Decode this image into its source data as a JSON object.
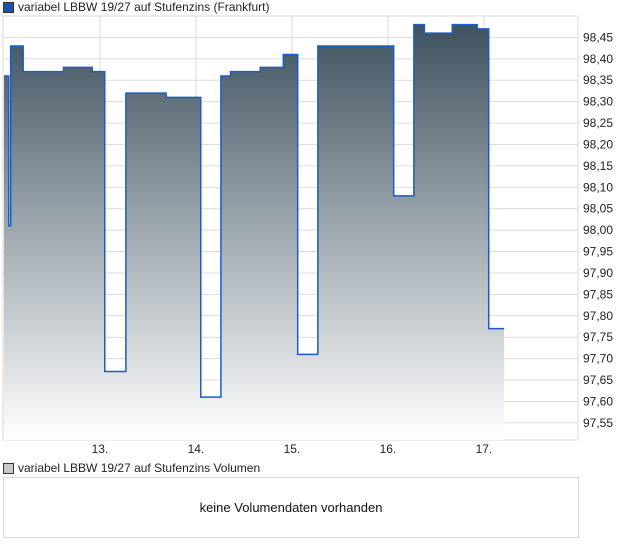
{
  "chart_data": {
    "type": "area",
    "title": "variabel LBBW 19/27 auf Stufenzins (Frankfurt)",
    "legend_color": "#1f4fb0",
    "line_color": "#1a5cc8",
    "fill_top": "#3f5260",
    "x_ticks": [
      {
        "day": 13,
        "label": "13."
      },
      {
        "day": 14,
        "label": "14."
      },
      {
        "day": 15,
        "label": "15."
      },
      {
        "day": 16,
        "label": "16."
      },
      {
        "day": 17,
        "label": "17."
      }
    ],
    "xlim": [
      11.99,
      17.98
    ],
    "ylim": [
      97.51,
      98.5
    ],
    "y_ticks": [
      "97,55",
      "97,60",
      "97,65",
      "97,70",
      "97,75",
      "97,80",
      "97,85",
      "97,90",
      "97,95",
      "98,00",
      "98,05",
      "98,10",
      "98,15",
      "98,20",
      "98,25",
      "98,30",
      "98,35",
      "98,40",
      "98,45"
    ],
    "y_tick_values": [
      97.55,
      97.6,
      97.65,
      97.7,
      97.75,
      97.8,
      97.85,
      97.9,
      97.95,
      98.0,
      98.05,
      98.1,
      98.15,
      98.2,
      98.25,
      98.3,
      98.35,
      98.4,
      98.45
    ],
    "grid": true,
    "points": [
      [
        12.0,
        98.36
      ],
      [
        12.05,
        98.01
      ],
      [
        12.07,
        98.43
      ],
      [
        12.2,
        98.37
      ],
      [
        12.62,
        98.38
      ],
      [
        12.92,
        98.37
      ],
      [
        13.05,
        97.67
      ],
      [
        13.27,
        98.32
      ],
      [
        13.69,
        98.31
      ],
      [
        14.05,
        97.61
      ],
      [
        14.26,
        98.36
      ],
      [
        14.36,
        98.37
      ],
      [
        14.67,
        98.38
      ],
      [
        14.91,
        98.41
      ],
      [
        15.06,
        97.71
      ],
      [
        15.27,
        98.43
      ],
      [
        16.06,
        98.08
      ],
      [
        16.27,
        98.48
      ],
      [
        16.38,
        98.46
      ],
      [
        16.67,
        98.48
      ],
      [
        16.93,
        98.47
      ],
      [
        17.05,
        97.77
      ],
      [
        17.21,
        97.77
      ]
    ]
  },
  "volume": {
    "legend": "variabel LBBW 19/27 auf Stufenzins Volumen",
    "legend_color": "#c8c8c8",
    "message": "keine Volumendaten vorhanden"
  }
}
